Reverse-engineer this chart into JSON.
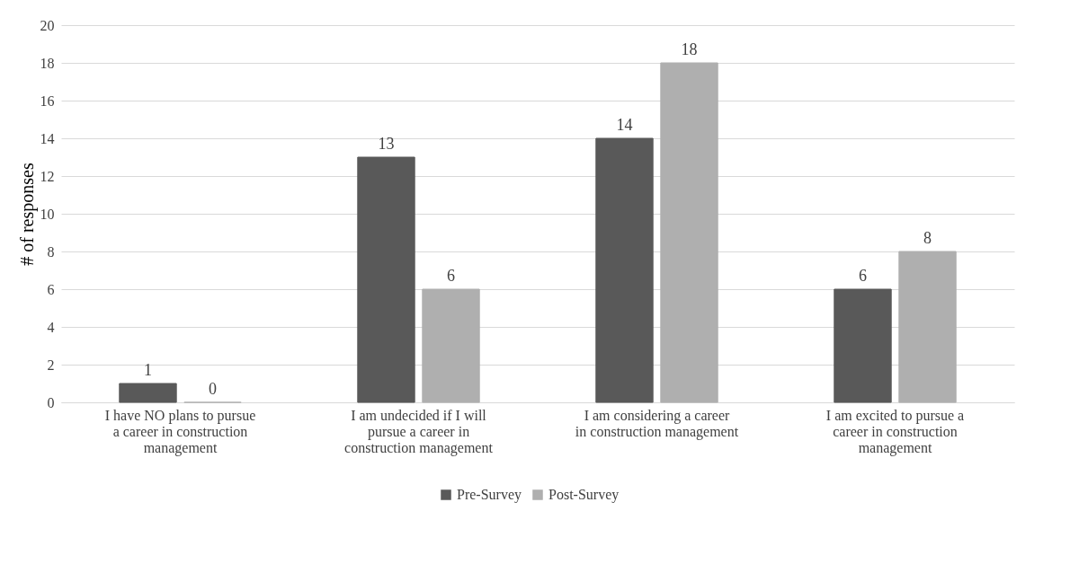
{
  "chart_data": {
    "type": "bar",
    "ylabel": "# of responses",
    "categories": [
      "I have NO plans to pursue a career in construction management",
      "I am undecided if I will pursue a career in construction management",
      "I am considering a career in construction management",
      "I am excited to pursue a career in construction management"
    ],
    "series": [
      {
        "name": "Pre-Survey",
        "color": "#595959",
        "values": [
          1,
          13,
          14,
          6
        ]
      },
      {
        "name": "Post-Survey",
        "color": "#afafaf",
        "values": [
          0,
          6,
          18,
          8
        ]
      }
    ],
    "ylim": [
      0,
      20
    ],
    "yticks": [
      0,
      2,
      4,
      6,
      8,
      10,
      12,
      14,
      16,
      18,
      20
    ],
    "grid": "y",
    "legend": "bottom",
    "data_labels": true
  }
}
